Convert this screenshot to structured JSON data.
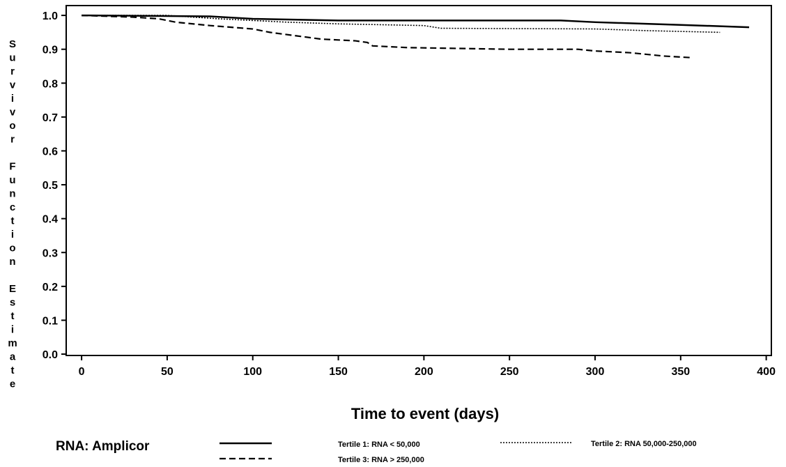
{
  "chart_data": {
    "type": "line",
    "x_label": "Time to event (days)",
    "y_label": "Survivor Function Estimate",
    "legend_title": "RNA: Amplicor",
    "xlim": [
      -9,
      403
    ],
    "ylim": [
      -0.004,
      1.029
    ],
    "xticks": [
      0,
      50,
      100,
      150,
      200,
      250,
      300,
      350,
      400
    ],
    "yticks": [
      {
        "value": 0,
        "label": "0.0"
      },
      0.1,
      0.2,
      0.3,
      0.4,
      0.5,
      0.6,
      0.7,
      0.8,
      0.9,
      {
        "value": 1,
        "label": "1.0"
      }
    ],
    "series": [
      {
        "name": "Tertile 1: RNA < 50,000",
        "color": "#000000",
        "dash": "solid",
        "x": [
          0,
          75,
          100,
          150,
          280,
          300,
          350,
          390
        ],
        "values": [
          1.0,
          0.997,
          0.99,
          0.985,
          0.985,
          0.98,
          0.972,
          0.965
        ]
      },
      {
        "name": "Tertile 2: RNA 50,000-250,000",
        "color": "#000000",
        "dash": "dotted",
        "x": [
          0,
          50,
          80,
          120,
          150,
          200,
          210,
          300,
          330,
          373
        ],
        "values": [
          1.0,
          1.0,
          0.99,
          0.98,
          0.975,
          0.97,
          0.962,
          0.96,
          0.955,
          0.95
        ]
      },
      {
        "name": "Tertile 3: RNA > 250,000",
        "color": "#000000",
        "dash": "dashed",
        "x": [
          0,
          30,
          45,
          55,
          75,
          100,
          110,
          125,
          140,
          160,
          167,
          170,
          190,
          250,
          290,
          300,
          320,
          340,
          357
        ],
        "values": [
          1.0,
          0.995,
          0.99,
          0.98,
          0.97,
          0.96,
          0.95,
          0.94,
          0.93,
          0.925,
          0.92,
          0.91,
          0.905,
          0.9,
          0.9,
          0.895,
          0.89,
          0.88,
          0.875
        ]
      }
    ]
  }
}
